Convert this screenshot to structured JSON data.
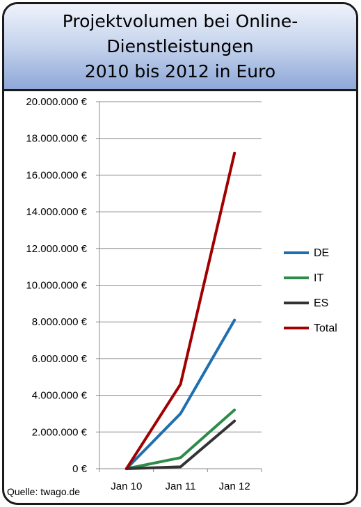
{
  "title_lines": [
    "Projektvolumen bei Online-",
    "Dienstleistungen",
    "2010 bis 2012 in Euro"
  ],
  "source": "Quelle: twago.de",
  "chart_data": {
    "type": "line",
    "categories": [
      "Jan 10",
      "Jan 11",
      "Jan 12"
    ],
    "ylim": [
      0,
      20000000
    ],
    "ytick_step": 2000000,
    "ytick_labels": [
      "0 €",
      "2.000.000 €",
      "4.000.000 €",
      "6.000.000 €",
      "8.000.000 €",
      "10.000.000 €",
      "12.000.000 €",
      "14.000.000 €",
      "16.000.000 €",
      "18.000.000 €",
      "20.000.000 €"
    ],
    "grid": true,
    "legend_position": "right",
    "series": [
      {
        "name": "DE",
        "color": "#1f6fb0",
        "values": [
          0,
          3000000,
          8100000
        ]
      },
      {
        "name": "IT",
        "color": "#2e8b4a",
        "values": [
          0,
          600000,
          3200000
        ]
      },
      {
        "name": "ES",
        "color": "#333333",
        "values": [
          0,
          100000,
          2600000
        ]
      },
      {
        "name": "Total",
        "color": "#a00000",
        "values": [
          0,
          4600000,
          17200000
        ]
      }
    ]
  }
}
